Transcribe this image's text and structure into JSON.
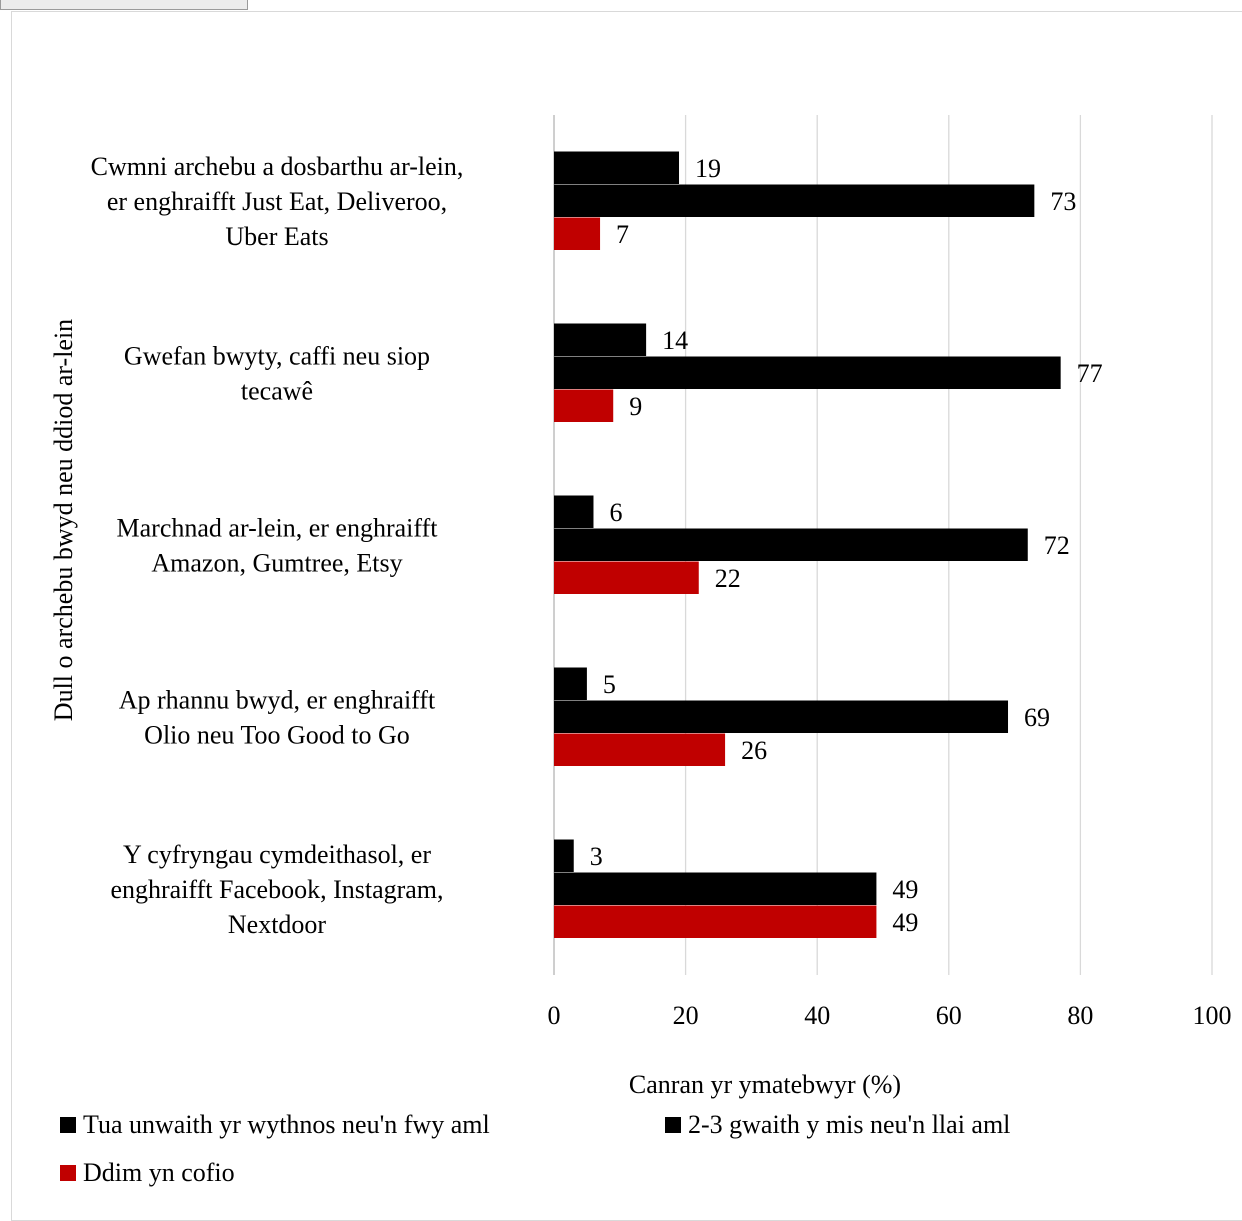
{
  "chart_data": {
    "type": "bar",
    "orientation": "horizontal",
    "categories": [
      [
        "Cwmni archebu a dosbarthu ar-lein,",
        "er enghraifft Just Eat, Deliveroo,",
        "Uber Eats"
      ],
      [
        "Gwefan bwyty, caffi neu siop",
        "tecawê"
      ],
      [
        "Marchnad ar-lein, er enghraifft",
        "Amazon, Gumtree, Etsy"
      ],
      [
        "Ap rhannu bwyd, er enghraifft",
        "Olio neu Too Good to Go"
      ],
      [
        "Y cyfryngau cymdeithasol, er",
        "enghraifft Facebook, Instagram,",
        "Nextdoor"
      ]
    ],
    "series": [
      {
        "name": "Tua unwaith yr wythnos neu'n fwy aml",
        "color": "#000000",
        "values": [
          19,
          14,
          6,
          5,
          3
        ]
      },
      {
        "name": "2-3 gwaith y mis neu'n llai aml",
        "color": "#000000",
        "values": [
          73,
          77,
          72,
          69,
          49
        ]
      },
      {
        "name": "Ddim yn cofio",
        "color": "#c00000",
        "values": [
          7,
          9,
          22,
          26,
          49
        ]
      }
    ],
    "xlabel": "Canran yr ymatebwyr (%)",
    "ylabel": "Dull o archebu bwyd neu ddiod ar-lein",
    "xlim": [
      0,
      100
    ],
    "xticks": [
      "0",
      "20",
      "40",
      "60",
      "80",
      "100"
    ],
    "grid": true,
    "legend_position": "bottom"
  },
  "legend": {
    "items": [
      {
        "label": "Tua unwaith yr wythnos neu'n fwy aml",
        "color": "#000000"
      },
      {
        "label": "2-3 gwaith y mis neu'n llai aml",
        "color": "#000000"
      },
      {
        "label": "Ddim yn cofio",
        "color": "#c00000"
      }
    ]
  }
}
